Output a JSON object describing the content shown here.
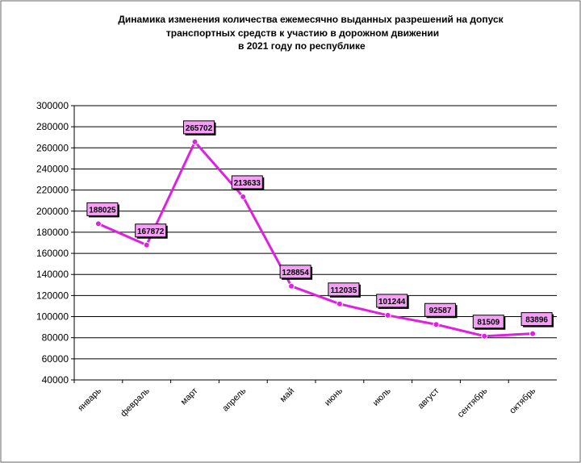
{
  "chart_data": {
    "type": "line",
    "title_lines": [
      "Динамика  изменения количества ежемесячно выданных разрешений на допуск",
      "транспортных средств к участию в дорожном движении",
      "в  2021   году по республике"
    ],
    "categories": [
      "январь",
      "февраль",
      "март",
      "апрель",
      "май",
      "июнь",
      "июль",
      "август",
      "сентябрь",
      "октябрь"
    ],
    "y_ticks": [
      "300000",
      "280000",
      "260000",
      "240000",
      "220000",
      "200000",
      "180000",
      "160000",
      "140000",
      "120000",
      "100000",
      "80000",
      "60000",
      "40000"
    ],
    "series": [
      {
        "values": [
          188025,
          167872,
          265702,
          213633,
          128854,
          112035,
          101244,
          92587,
          81509,
          83896
        ],
        "labels": [
          "188025",
          "167872",
          "265702",
          "213633",
          "128854",
          "112035",
          "101244",
          "92587",
          "81509",
          "83896"
        ],
        "color": "#e020e0"
      }
    ],
    "ylim": [
      40000,
      300000
    ],
    "grid": true,
    "label_fill": "#f4a0f4",
    "xlabel": "",
    "ylabel": ""
  }
}
